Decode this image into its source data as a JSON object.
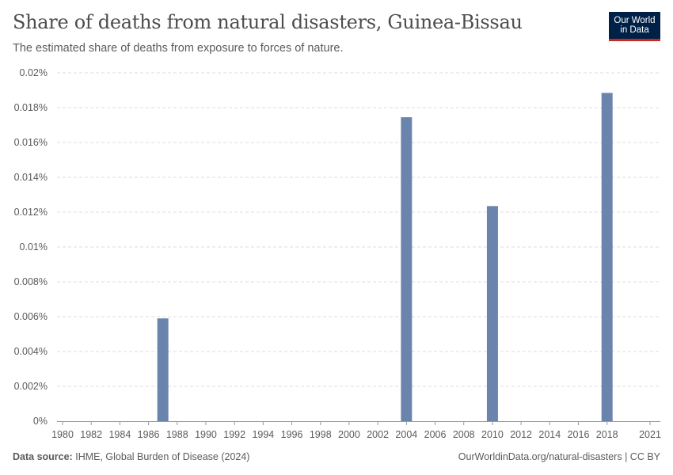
{
  "header": {
    "title": "Share of deaths from natural disasters, Guinea-Bissau",
    "subtitle": "The estimated share of deaths from exposure to forces of nature."
  },
  "logo": {
    "line1": "Our World",
    "line2": "in Data"
  },
  "footer": {
    "source_label": "Data source:",
    "source_text": "IHME, Global Burden of Disease (2024)",
    "url_text": "OurWorldinData.org/natural-disasters | CC BY"
  },
  "colors": {
    "bar": "#6b84ad",
    "grid": "#dddddd",
    "axis": "#999999",
    "logo_bg": "#002147",
    "logo_accent": "#ce261e"
  },
  "chart_data": {
    "type": "bar",
    "title": "Share of deaths from natural disasters, Guinea-Bissau",
    "xlim": [
      1980,
      2021
    ],
    "ylim": [
      0,
      0.02
    ],
    "unit": "%",
    "grid": true,
    "x_ticks": [
      "1980",
      "1982",
      "1984",
      "1986",
      "1988",
      "1990",
      "1992",
      "1994",
      "1996",
      "1998",
      "2000",
      "2002",
      "2004",
      "2006",
      "2008",
      "2010",
      "2012",
      "2014",
      "2016",
      "2018",
      "2021"
    ],
    "y_ticks": [
      "0%",
      "0.002%",
      "0.004%",
      "0.006%",
      "0.008%",
      "0.01%",
      "0.012%",
      "0.014%",
      "0.016%",
      "0.018%",
      "0.02%"
    ],
    "x": [
      1987,
      2004,
      2010,
      2018
    ],
    "values": [
      0.0059,
      0.01745,
      0.01235,
      0.01885
    ]
  }
}
